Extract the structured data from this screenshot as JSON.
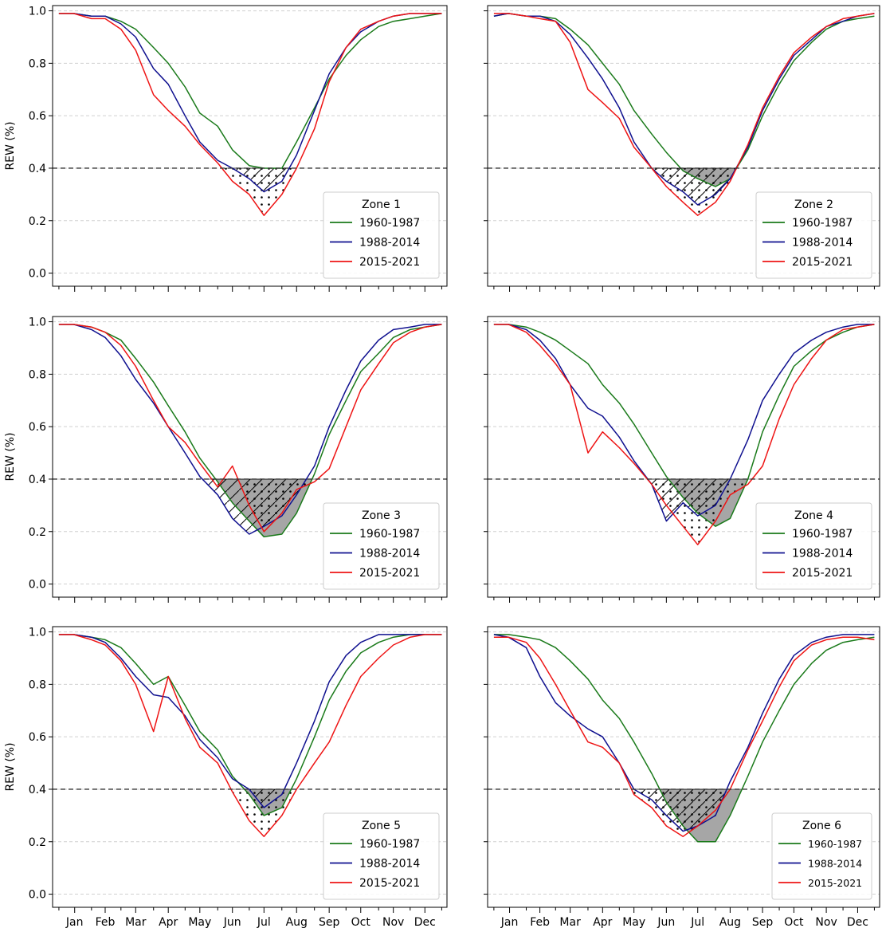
{
  "figure": {
    "ylabel": "REW (%)",
    "months": [
      "Jan",
      "Feb",
      "Mar",
      "Apr",
      "May",
      "Jun",
      "Jul",
      "Aug",
      "Sep",
      "Oct",
      "Nov",
      "Dec"
    ],
    "yticks": [
      "0.0",
      "0.2",
      "0.4",
      "0.6",
      "0.8",
      "1.0"
    ]
  },
  "chart_data": [
    {
      "type": "line",
      "legend_title": "Zone 1",
      "legend_position": "lower-right",
      "ylabel": "REW (%)",
      "ylim": [
        -0.05,
        1.02
      ],
      "xlim": [
        -5,
        370
      ],
      "grid": "y-dashed",
      "threshold": 0.4,
      "x": [
        1,
        15,
        32,
        45,
        60,
        74,
        91,
        105,
        121,
        135,
        152,
        166,
        182,
        196,
        213,
        227,
        244,
        258,
        274,
        288,
        305,
        319,
        335,
        349,
        365
      ],
      "series": [
        {
          "name": "1960-1987",
          "color": "#1a7a1a",
          "values": [
            0.99,
            0.99,
            0.98,
            0.98,
            0.96,
            0.93,
            0.86,
            0.8,
            0.71,
            0.61,
            0.56,
            0.47,
            0.41,
            0.4,
            0.4,
            0.5,
            0.63,
            0.74,
            0.83,
            0.89,
            0.94,
            0.96,
            0.97,
            0.98,
            0.99
          ]
        },
        {
          "name": "1988-2014",
          "color": "#0f108f",
          "values": [
            0.99,
            0.99,
            0.98,
            0.98,
            0.95,
            0.9,
            0.78,
            0.72,
            0.6,
            0.5,
            0.43,
            0.4,
            0.36,
            0.31,
            0.35,
            0.45,
            0.62,
            0.76,
            0.86,
            0.92,
            0.96,
            0.98,
            0.99,
            0.99,
            0.99
          ]
        },
        {
          "name": "2015-2021",
          "color": "#ee1414",
          "values": [
            0.99,
            0.99,
            0.97,
            0.97,
            0.93,
            0.85,
            0.68,
            0.62,
            0.56,
            0.49,
            0.42,
            0.35,
            0.3,
            0.22,
            0.3,
            0.4,
            0.55,
            0.73,
            0.86,
            0.93,
            0.96,
            0.98,
            0.99,
            0.99,
            0.99
          ]
        }
      ]
    },
    {
      "type": "line",
      "legend_title": "Zone 2",
      "legend_position": "lower-right",
      "ylabel": "",
      "ylim": [
        -0.05,
        1.02
      ],
      "xlim": [
        -5,
        370
      ],
      "grid": "y-dashed",
      "threshold": 0.4,
      "x": [
        1,
        15,
        32,
        45,
        60,
        74,
        91,
        105,
        121,
        135,
        152,
        166,
        182,
        196,
        213,
        227,
        244,
        258,
        274,
        288,
        305,
        319,
        335,
        349,
        365
      ],
      "series": [
        {
          "name": "1960-1987",
          "color": "#1a7a1a",
          "values": [
            0.98,
            0.99,
            0.98,
            0.98,
            0.97,
            0.93,
            0.87,
            0.8,
            0.72,
            0.62,
            0.53,
            0.46,
            0.39,
            0.36,
            0.33,
            0.36,
            0.47,
            0.6,
            0.72,
            0.81,
            0.88,
            0.93,
            0.96,
            0.97,
            0.98
          ]
        },
        {
          "name": "1988-2014",
          "color": "#0f108f",
          "values": [
            0.98,
            0.99,
            0.98,
            0.98,
            0.96,
            0.91,
            0.82,
            0.74,
            0.63,
            0.5,
            0.4,
            0.35,
            0.31,
            0.26,
            0.3,
            0.36,
            0.48,
            0.62,
            0.74,
            0.83,
            0.89,
            0.94,
            0.96,
            0.98,
            0.99
          ]
        },
        {
          "name": "2015-2021",
          "color": "#ee1414",
          "values": [
            0.99,
            0.99,
            0.98,
            0.97,
            0.96,
            0.88,
            0.7,
            0.65,
            0.59,
            0.48,
            0.4,
            0.33,
            0.27,
            0.22,
            0.27,
            0.35,
            0.49,
            0.63,
            0.75,
            0.84,
            0.9,
            0.94,
            0.97,
            0.98,
            0.99
          ]
        }
      ]
    },
    {
      "type": "line",
      "legend_title": "Zone 3",
      "legend_position": "lower-right",
      "ylabel": "REW (%)",
      "ylim": [
        -0.05,
        1.02
      ],
      "xlim": [
        -5,
        370
      ],
      "grid": "y-dashed",
      "threshold": 0.4,
      "x": [
        1,
        15,
        32,
        45,
        60,
        74,
        91,
        105,
        121,
        135,
        152,
        166,
        182,
        196,
        213,
        227,
        244,
        258,
        274,
        288,
        305,
        319,
        335,
        349,
        365
      ],
      "series": [
        {
          "name": "1960-1987",
          "color": "#1a7a1a",
          "values": [
            0.99,
            0.99,
            0.98,
            0.96,
            0.93,
            0.86,
            0.77,
            0.68,
            0.58,
            0.48,
            0.39,
            0.31,
            0.24,
            0.18,
            0.19,
            0.27,
            0.42,
            0.57,
            0.7,
            0.81,
            0.88,
            0.94,
            0.97,
            0.98,
            0.99
          ]
        },
        {
          "name": "1988-2014",
          "color": "#0f108f",
          "values": [
            0.99,
            0.99,
            0.97,
            0.94,
            0.87,
            0.78,
            0.69,
            0.6,
            0.5,
            0.41,
            0.34,
            0.25,
            0.19,
            0.22,
            0.26,
            0.34,
            0.45,
            0.6,
            0.74,
            0.85,
            0.93,
            0.97,
            0.98,
            0.99,
            0.99
          ]
        },
        {
          "name": "2015-2021",
          "color": "#ee1414",
          "values": [
            0.99,
            0.99,
            0.98,
            0.96,
            0.91,
            0.83,
            0.7,
            0.6,
            0.54,
            0.46,
            0.37,
            0.45,
            0.3,
            0.2,
            0.27,
            0.36,
            0.39,
            0.44,
            0.6,
            0.74,
            0.84,
            0.92,
            0.96,
            0.98,
            0.99
          ]
        }
      ]
    },
    {
      "type": "line",
      "legend_title": "Zone 4",
      "legend_position": "lower-right",
      "ylabel": "",
      "ylim": [
        -0.05,
        1.02
      ],
      "xlim": [
        -5,
        370
      ],
      "grid": "y-dashed",
      "threshold": 0.4,
      "x": [
        1,
        15,
        32,
        45,
        60,
        74,
        91,
        105,
        121,
        135,
        152,
        166,
        182,
        196,
        213,
        227,
        244,
        258,
        274,
        288,
        305,
        319,
        335,
        349,
        365
      ],
      "series": [
        {
          "name": "1960-1987",
          "color": "#1a7a1a",
          "values": [
            0.99,
            0.99,
            0.98,
            0.96,
            0.93,
            0.89,
            0.84,
            0.76,
            0.69,
            0.61,
            0.5,
            0.41,
            0.33,
            0.27,
            0.22,
            0.25,
            0.4,
            0.58,
            0.72,
            0.83,
            0.89,
            0.93,
            0.96,
            0.98,
            0.99
          ]
        },
        {
          "name": "1988-2014",
          "color": "#0f108f",
          "values": [
            0.99,
            0.99,
            0.97,
            0.93,
            0.86,
            0.76,
            0.67,
            0.64,
            0.56,
            0.47,
            0.38,
            0.24,
            0.31,
            0.26,
            0.3,
            0.4,
            0.55,
            0.7,
            0.8,
            0.88,
            0.93,
            0.96,
            0.98,
            0.99,
            0.99
          ]
        },
        {
          "name": "2015-2021",
          "color": "#ee1414",
          "values": [
            0.99,
            0.99,
            0.96,
            0.91,
            0.84,
            0.76,
            0.5,
            0.58,
            0.52,
            0.46,
            0.38,
            0.3,
            0.22,
            0.15,
            0.24,
            0.34,
            0.38,
            0.45,
            0.63,
            0.76,
            0.86,
            0.93,
            0.97,
            0.98,
            0.99
          ]
        }
      ]
    },
    {
      "type": "line",
      "legend_title": "Zone 5",
      "legend_position": "lower-right",
      "ylabel": "REW (%)",
      "ylim": [
        -0.05,
        1.02
      ],
      "xlim": [
        -5,
        370
      ],
      "grid": "y-dashed",
      "threshold": 0.4,
      "x": [
        1,
        15,
        32,
        45,
        60,
        74,
        91,
        105,
        121,
        135,
        152,
        166,
        182,
        196,
        213,
        227,
        244,
        258,
        274,
        288,
        305,
        319,
        335,
        349,
        365
      ],
      "series": [
        {
          "name": "1960-1987",
          "color": "#1a7a1a",
          "values": [
            0.99,
            0.99,
            0.98,
            0.97,
            0.94,
            0.88,
            0.8,
            0.83,
            0.72,
            0.62,
            0.55,
            0.45,
            0.38,
            0.3,
            0.33,
            0.44,
            0.6,
            0.74,
            0.85,
            0.92,
            0.96,
            0.98,
            0.99,
            0.99,
            0.99
          ]
        },
        {
          "name": "1988-2014",
          "color": "#0f108f",
          "values": [
            0.99,
            0.99,
            0.98,
            0.96,
            0.9,
            0.83,
            0.76,
            0.75,
            0.68,
            0.59,
            0.52,
            0.44,
            0.4,
            0.33,
            0.38,
            0.5,
            0.66,
            0.81,
            0.91,
            0.96,
            0.99,
            0.99,
            0.99,
            0.99,
            0.99
          ]
        },
        {
          "name": "2015-2021",
          "color": "#ee1414",
          "values": [
            0.99,
            0.99,
            0.97,
            0.95,
            0.89,
            0.8,
            0.62,
            0.83,
            0.67,
            0.56,
            0.5,
            0.39,
            0.28,
            0.22,
            0.3,
            0.4,
            0.5,
            0.58,
            0.72,
            0.83,
            0.9,
            0.95,
            0.98,
            0.99,
            0.99
          ]
        }
      ]
    },
    {
      "type": "line",
      "legend_title": "Zone 6",
      "legend_position": "lower-right",
      "ylabel": "",
      "ylim": [
        -0.05,
        1.02
      ],
      "xlim": [
        -5,
        370
      ],
      "grid": "y-dashed",
      "threshold": 0.4,
      "x": [
        1,
        15,
        32,
        45,
        60,
        74,
        91,
        105,
        121,
        135,
        152,
        166,
        182,
        196,
        213,
        227,
        244,
        258,
        274,
        288,
        305,
        319,
        335,
        349,
        365
      ],
      "series": [
        {
          "name": "1960-1987",
          "color": "#1a7a1a",
          "values": [
            0.99,
            0.99,
            0.98,
            0.97,
            0.94,
            0.89,
            0.82,
            0.74,
            0.67,
            0.58,
            0.46,
            0.35,
            0.26,
            0.2,
            0.2,
            0.3,
            0.45,
            0.58,
            0.7,
            0.8,
            0.88,
            0.93,
            0.96,
            0.97,
            0.98
          ]
        },
        {
          "name": "1988-2014",
          "color": "#0f108f",
          "values": [
            0.99,
            0.98,
            0.94,
            0.83,
            0.73,
            0.68,
            0.63,
            0.6,
            0.5,
            0.4,
            0.36,
            0.3,
            0.24,
            0.26,
            0.3,
            0.43,
            0.56,
            0.69,
            0.82,
            0.91,
            0.96,
            0.98,
            0.99,
            0.99,
            0.99
          ]
        },
        {
          "name": "2015-2021",
          "color": "#ee1414",
          "values": [
            0.98,
            0.98,
            0.96,
            0.9,
            0.8,
            0.7,
            0.58,
            0.56,
            0.5,
            0.38,
            0.33,
            0.26,
            0.22,
            0.26,
            0.32,
            0.4,
            0.55,
            0.66,
            0.79,
            0.89,
            0.95,
            0.97,
            0.98,
            0.98,
            0.97
          ]
        }
      ]
    }
  ]
}
